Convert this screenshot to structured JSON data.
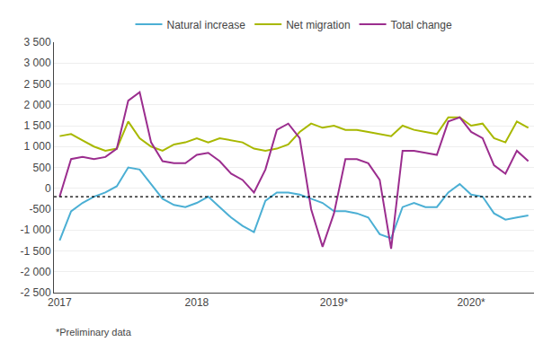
{
  "chart_data": {
    "type": "line",
    "footnote": "*Preliminary data",
    "categories": [
      "2017",
      null,
      null,
      null,
      null,
      null,
      null,
      null,
      null,
      null,
      null,
      null,
      "2018",
      null,
      null,
      null,
      null,
      null,
      null,
      null,
      null,
      null,
      null,
      null,
      "2019*",
      null,
      null,
      null,
      null,
      null,
      null,
      null,
      null,
      null,
      null,
      null,
      "2020*",
      null,
      null,
      null,
      null,
      null
    ],
    "series": [
      {
        "name": "Natural increase",
        "color": "#4bafd4",
        "values": [
          -1250,
          -550,
          -350,
          -200,
          -100,
          50,
          500,
          450,
          100,
          -250,
          -400,
          -450,
          -350,
          -200,
          -450,
          -700,
          -900,
          -1050,
          -300,
          -100,
          -100,
          -150,
          -250,
          -350,
          -550,
          -550,
          -600,
          -700,
          -1100,
          -1200,
          -450,
          -350,
          -450,
          -450,
          -100,
          100,
          -150,
          -200,
          -600,
          -750,
          -700,
          -650
        ]
      },
      {
        "name": "Net migration",
        "color": "#a8b800",
        "values": [
          1250,
          1300,
          1150,
          1000,
          900,
          950,
          1600,
          1200,
          1000,
          900,
          1050,
          1100,
          1200,
          1100,
          1200,
          1150,
          1100,
          950,
          900,
          950,
          1050,
          1350,
          1550,
          1450,
          1500,
          1400,
          1400,
          1350,
          1300,
          1250,
          1500,
          1400,
          1350,
          1300,
          1700,
          1700,
          1500,
          1550,
          1200,
          1100,
          1600,
          1450
        ]
      },
      {
        "name": "Total change",
        "color": "#9b2d8e",
        "values": [
          -200,
          700,
          750,
          700,
          750,
          950,
          2100,
          2300,
          1100,
          650,
          600,
          600,
          800,
          850,
          650,
          350,
          200,
          -100,
          450,
          1400,
          1550,
          1200,
          -500,
          -1400,
          -600,
          700,
          700,
          600,
          200,
          -1450,
          900,
          900,
          850,
          800,
          1600,
          1700,
          1350,
          1200,
          550,
          350,
          900,
          650
        ]
      }
    ],
    "hline": {
      "y": -200,
      "color": "#000000",
      "line_style": "dotted"
    },
    "ylim": [
      -2500,
      3500
    ],
    "yticks": [
      {
        "value": -2500,
        "label": "-2 500"
      },
      {
        "value": -2000,
        "label": "-2 000"
      },
      {
        "value": -1500,
        "label": "-1 500"
      },
      {
        "value": -1000,
        "label": "-1 000"
      },
      -500,
      0,
      500,
      {
        "value": 1000,
        "label": "1 000"
      },
      {
        "value": 1500,
        "label": "1 500"
      },
      {
        "value": 2000,
        "label": "2 000"
      },
      {
        "value": 2500,
        "label": "2 500"
      },
      {
        "value": 3000,
        "label": "3 000"
      },
      {
        "value": 3500,
        "label": "3 500"
      }
    ],
    "grid": true,
    "legend": "top"
  }
}
